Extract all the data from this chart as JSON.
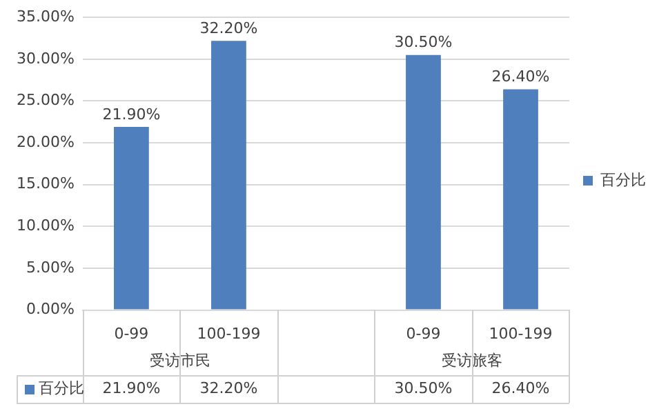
{
  "chart_data": {
    "type": "bar",
    "categories": [
      "0-99",
      "100-199",
      null,
      "0-99",
      "100-199"
    ],
    "series": [
      {
        "name": "百分比",
        "color": "#4f7fbd",
        "values": [
          21.9,
          32.2,
          null,
          30.5,
          26.4
        ],
        "value_labels": [
          "21.90%",
          "32.20%",
          null,
          "30.50%",
          "26.40%"
        ]
      }
    ],
    "annotations": [
      "受访市民",
      "受访旅客"
    ],
    "ylim": [
      0,
      35
    ],
    "yticks": [
      {
        "value": 0,
        "label": "0.00%"
      },
      {
        "value": 5,
        "label": "5.00%"
      },
      {
        "value": 10,
        "label": "10.00%"
      },
      {
        "value": 15,
        "label": "15.00%"
      },
      {
        "value": 20,
        "label": "20.00%"
      },
      {
        "value": 25,
        "label": "25.00%"
      },
      {
        "value": 30,
        "label": "30.00%"
      },
      {
        "value": 35,
        "label": "35.00%"
      }
    ],
    "grid": "y",
    "legend": "right"
  }
}
